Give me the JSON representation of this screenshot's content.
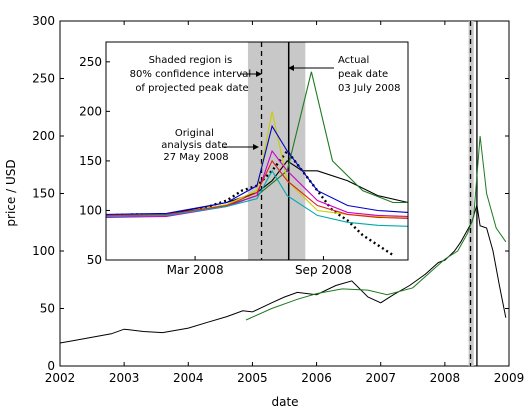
{
  "chart_data": [
    {
      "type": "line",
      "role": "main",
      "xlabel": "date",
      "ylabel": "price / USD",
      "xlim": [
        2002,
        2009
      ],
      "ylim": [
        0,
        300
      ],
      "x_ticks": [
        2002,
        2003,
        2004,
        2005,
        2006,
        2007,
        2008,
        2009
      ],
      "y_ticks": [
        0,
        50,
        100,
        150,
        200,
        250,
        300
      ],
      "shaded_region_x": [
        2008.37,
        2008.45
      ],
      "markers": [
        {
          "kind": "dashed",
          "x": 2008.4
        },
        {
          "kind": "solid",
          "x": 2008.5
        }
      ],
      "series": [
        {
          "color": "#000000",
          "x": [
            2002.0,
            2002.2,
            2002.5,
            2002.8,
            2003.0,
            2003.3,
            2003.6,
            2004.0,
            2004.3,
            2004.6,
            2004.85,
            2005.0,
            2005.3,
            2005.5,
            2005.7,
            2006.0,
            2006.3,
            2006.55,
            2006.8,
            2007.0,
            2007.2,
            2007.45,
            2007.7,
            2007.9,
            2008.0,
            2008.15,
            2008.25,
            2008.35,
            2008.42,
            2008.5,
            2008.55,
            2008.65,
            2008.75,
            2008.85,
            2008.95
          ],
          "y": [
            20,
            22,
            25,
            28,
            32,
            30,
            29,
            33,
            38,
            43,
            48,
            47,
            55,
            60,
            64,
            62,
            70,
            74,
            60,
            55,
            62,
            70,
            80,
            90,
            92,
            100,
            108,
            118,
            125,
            140,
            122,
            120,
            100,
            70,
            42
          ]
        },
        {
          "color": "#1f7a1f",
          "x": [
            2004.9,
            2005.3,
            2005.7,
            2006.0,
            2006.4,
            2006.8,
            2007.1,
            2007.5,
            2007.8,
            2008.0,
            2008.2,
            2008.35,
            2008.45,
            2008.55,
            2008.65,
            2008.8,
            2008.95
          ],
          "y": [
            40,
            50,
            58,
            63,
            67,
            66,
            62,
            68,
            83,
            93,
            100,
            115,
            130,
            200,
            150,
            120,
            108
          ]
        }
      ]
    },
    {
      "type": "line",
      "role": "inset",
      "ylim": [
        50,
        270
      ],
      "x_ticks": [
        "Mar 2008",
        "Sep 2008"
      ],
      "y_ticks": [
        50,
        100,
        150,
        200,
        250
      ],
      "shaded_region_x": [
        0.47,
        0.66
      ],
      "markers": [
        {
          "kind": "dashed",
          "x": 0.515
        },
        {
          "kind": "solid",
          "x": 0.605
        }
      ],
      "annotations": [
        {
          "text": "Shaded region is\n80% confidence interval\nof projected peak date"
        },
        {
          "text": "Actual\npeak date\n03 July 2008"
        },
        {
          "text": "Original\nanalysis date\n27 May 2008"
        }
      ],
      "series": [
        {
          "color": "#000000",
          "style": "dotted",
          "x": [
            0,
            0.1,
            0.2,
            0.3,
            0.4,
            0.45,
            0.5,
            0.55,
            0.6,
            0.65,
            0.7,
            0.75,
            0.8,
            0.85,
            0.9,
            0.95
          ],
          "y": [
            95,
            96,
            95,
            100,
            110,
            120,
            125,
            140,
            160,
            140,
            120,
            100,
            90,
            75,
            65,
            55
          ]
        },
        {
          "color": "#000000",
          "x": [
            0,
            0.2,
            0.4,
            0.5,
            0.55,
            0.6,
            0.65,
            0.7,
            0.8,
            0.9,
            1.0
          ],
          "y": [
            95,
            96,
            108,
            118,
            130,
            150,
            140,
            140,
            130,
            115,
            108
          ]
        },
        {
          "color": "#1f7a1f",
          "x": [
            0,
            0.2,
            0.4,
            0.5,
            0.6,
            0.68,
            0.75,
            0.85,
            0.95,
            1.0
          ],
          "y": [
            94,
            95,
            105,
            115,
            140,
            240,
            150,
            120,
            108,
            108
          ]
        },
        {
          "color": "#cccc00",
          "x": [
            0,
            0.2,
            0.4,
            0.5,
            0.55,
            0.6,
            0.7,
            0.8,
            0.9,
            1.0
          ],
          "y": [
            94,
            95,
            106,
            120,
            200,
            130,
            100,
            96,
            94,
            93
          ]
        },
        {
          "color": "#0000cc",
          "x": [
            0,
            0.2,
            0.4,
            0.5,
            0.55,
            0.6,
            0.7,
            0.8,
            0.9,
            1.0
          ],
          "y": [
            96,
            97,
            108,
            125,
            185,
            160,
            120,
            105,
            100,
            98
          ]
        },
        {
          "color": "#cc00cc",
          "x": [
            0,
            0.2,
            0.4,
            0.5,
            0.55,
            0.6,
            0.7,
            0.8,
            0.9,
            1.0
          ],
          "y": [
            93,
            94,
            104,
            115,
            160,
            140,
            110,
            98,
            95,
            94
          ]
        },
        {
          "color": "#dd2222",
          "x": [
            0,
            0.2,
            0.4,
            0.5,
            0.55,
            0.6,
            0.7,
            0.8,
            0.9,
            1.0
          ],
          "y": [
            95,
            96,
            105,
            118,
            150,
            130,
            105,
            96,
            93,
            92
          ]
        },
        {
          "color": "#00aaaa",
          "x": [
            0,
            0.2,
            0.4,
            0.5,
            0.55,
            0.6,
            0.7,
            0.8,
            0.9,
            1.0
          ],
          "y": [
            94,
            95,
            104,
            112,
            140,
            115,
            95,
            88,
            85,
            84
          ]
        }
      ]
    }
  ]
}
